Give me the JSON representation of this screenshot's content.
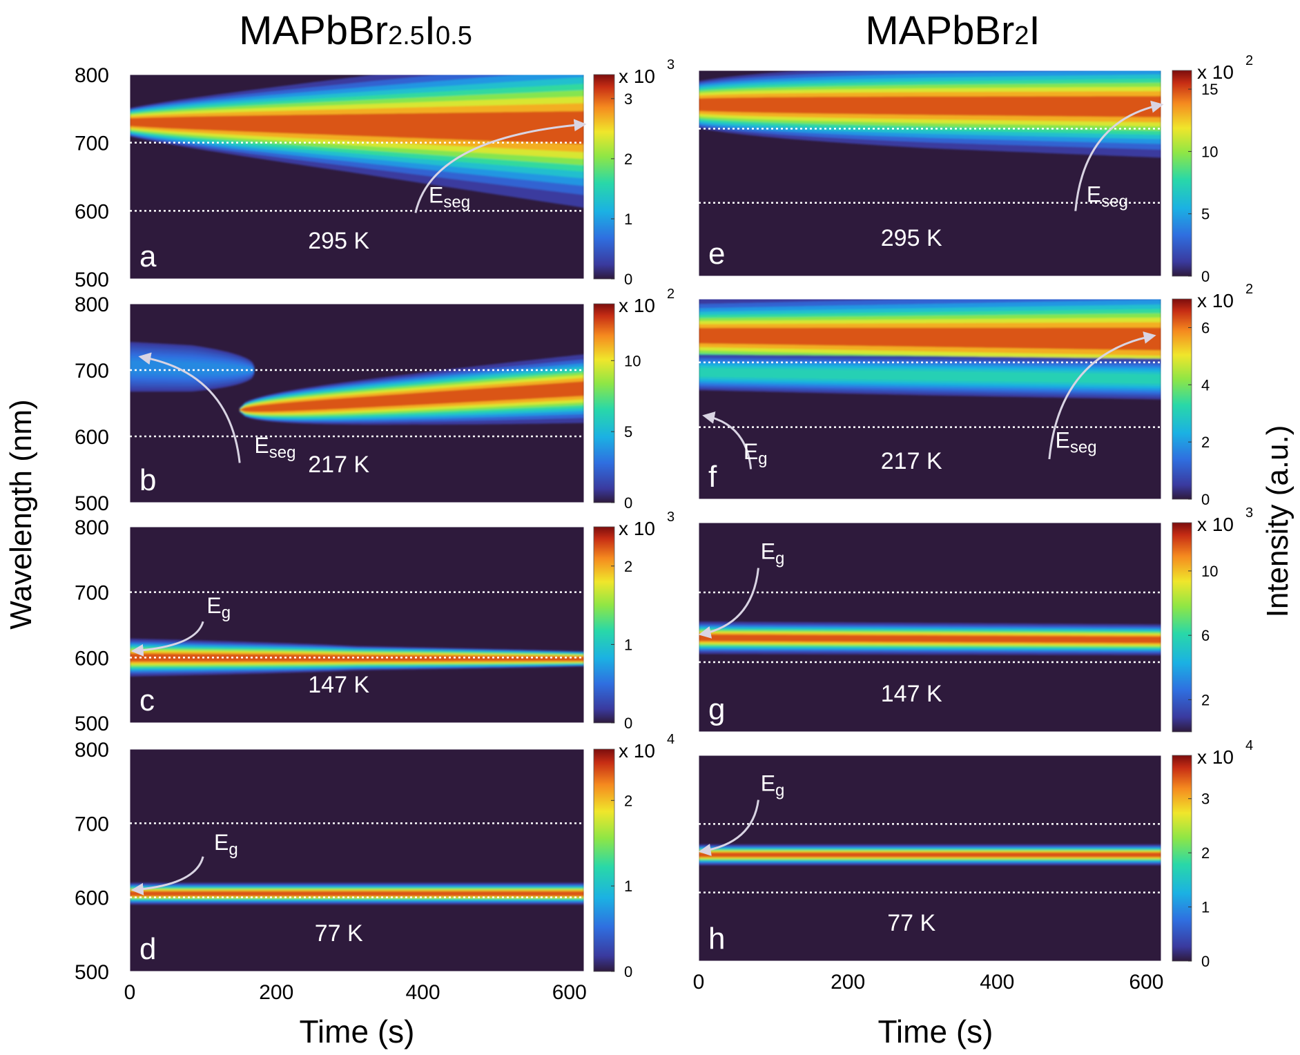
{
  "figure": {
    "left_title": {
      "base": "MAPbBr",
      "sub1": "2.5",
      "mid": "I",
      "sub2": "0.5"
    },
    "right_title": {
      "base": "MAPbBr",
      "sub1": "2",
      "mid": "I"
    },
    "ylabel": "Wavelength (nm)",
    "xlabel_left": "Time (s)",
    "xlabel_right": "Time (s)",
    "colorbar_label": "Intensity (a.u.)"
  },
  "colors": {
    "background": "#2e1a3c",
    "dotted_line": "#ffffff",
    "arrow": "#d9d4e3"
  },
  "chart_data": [
    {
      "type": "heatmap",
      "panel": "a",
      "column": "left",
      "row": 0,
      "temperature": "295 K",
      "xlim": [
        0,
        620
      ],
      "xticks": [
        0,
        200,
        400,
        600
      ],
      "ylim": [
        500,
        800
      ],
      "yticks": [
        500,
        600,
        700,
        800
      ],
      "dotted_lines": [
        700,
        600
      ],
      "colorbar": {
        "scale": "x 10",
        "exponent": "3",
        "ticks": [
          "0",
          "1",
          "2",
          "3"
        ],
        "max": 3.4
      },
      "bands": [
        {
          "t0": 0,
          "t1": 620,
          "c_start": 730,
          "c_end": 722,
          "w_start": 20,
          "w_end": 52,
          "i_start": 0.15,
          "i_mid": 0.55,
          "i_end": 1.0,
          "floor": 0.1,
          "spread": 2.2
        }
      ],
      "annotations": [
        {
          "label": "E",
          "sub": "seg",
          "lx": 390,
          "ly": 597,
          "tx": 620,
          "ty": 727,
          "ox": 408,
          "oy": 612
        }
      ]
    },
    {
      "type": "heatmap",
      "panel": "b",
      "column": "left",
      "row": 1,
      "temperature": "217 K",
      "xlim": [
        0,
        620
      ],
      "xticks": [
        0,
        200,
        400,
        600
      ],
      "ylim": [
        500,
        800
      ],
      "yticks": [
        500,
        600,
        700,
        800
      ],
      "dotted_lines": [
        700,
        600
      ],
      "colorbar": {
        "scale": "x 10",
        "exponent": "2",
        "ticks": [
          "0",
          "5",
          "10"
        ],
        "max": 14
      },
      "bands": [
        {
          "t0": 0,
          "t1": 170,
          "c_start": 705,
          "c_end": 700,
          "w_start": 40,
          "w_end": 40,
          "i_start": 0.22,
          "i_mid": 0.2,
          "i_end": 0.12,
          "floor": 0.12,
          "spread": 1.6
        },
        {
          "t0": 150,
          "t1": 620,
          "c_start": 640,
          "c_end": 672,
          "w_start": 20,
          "w_end": 26,
          "i_start": 0.12,
          "i_mid": 0.5,
          "i_end": 1.0,
          "floor": 0.12,
          "spread": 2.0
        }
      ],
      "annotations": [
        {
          "label": "E",
          "sub": "seg",
          "lx": 150,
          "ly": 560,
          "tx": 15,
          "ty": 720,
          "ox": 170,
          "oy": 575
        }
      ]
    },
    {
      "type": "heatmap",
      "panel": "c",
      "column": "left",
      "row": 2,
      "temperature": "147 K",
      "xlim": [
        0,
        620
      ],
      "xticks": [
        0,
        200,
        400,
        600
      ],
      "ylim": [
        500,
        800
      ],
      "yticks": [
        500,
        600,
        700,
        800
      ],
      "dotted_lines": [
        700,
        600
      ],
      "colorbar": {
        "scale": "x 10",
        "exponent": "3",
        "ticks": [
          "0",
          "1",
          "2"
        ],
        "max": 2.5
      },
      "bands": [
        {
          "t0": 0,
          "t1": 620,
          "c_start": 600,
          "c_end": 598,
          "w_start": 16,
          "w_end": 12,
          "i_start": 1.0,
          "i_mid": 0.35,
          "i_end": 0.2,
          "floor": 0.12,
          "spread": 1.8
        }
      ],
      "annotations": [
        {
          "label": "E",
          "sub": "g",
          "lx": 100,
          "ly": 655,
          "tx": 5,
          "ty": 610,
          "ox": 105,
          "oy": 668
        }
      ]
    },
    {
      "type": "heatmap",
      "panel": "d",
      "column": "left",
      "row": 3,
      "temperature": "77 K",
      "xlim": [
        0,
        620
      ],
      "xticks": [
        0,
        200,
        400,
        600
      ],
      "ylim": [
        500,
        800
      ],
      "yticks": [
        500,
        600,
        700,
        800
      ],
      "dotted_lines": [
        700,
        600
      ],
      "colorbar": {
        "scale": "x 10",
        "exponent": "4",
        "ticks": [
          "0",
          "1",
          "2"
        ],
        "max": 2.6
      },
      "bands": [
        {
          "t0": 0,
          "t1": 620,
          "c_start": 605,
          "c_end": 605,
          "w_start": 9,
          "w_end": 9,
          "i_start": 1.0,
          "i_mid": 1.0,
          "i_end": 1.0,
          "floor": 0.12,
          "spread": 1.6
        }
      ],
      "annotations": [
        {
          "label": "E",
          "sub": "g",
          "lx": 100,
          "ly": 655,
          "tx": 5,
          "ty": 610,
          "ox": 115,
          "oy": 664
        }
      ]
    },
    {
      "type": "heatmap",
      "panel": "e",
      "column": "right",
      "row": 0,
      "temperature": "295 K",
      "xlim": [
        0,
        620
      ],
      "xticks": [
        0,
        200,
        400,
        600
      ],
      "ylim": [
        500,
        800
      ],
      "yticks": [],
      "dotted_lines": [
        715,
        607
      ],
      "colorbar": {
        "scale": "x 10",
        "exponent": "2",
        "ticks": [
          "0",
          "5",
          "10",
          "15"
        ],
        "max": 16.5
      },
      "bands": [
        {
          "t0": 0,
          "t1": 620,
          "c_start": 750,
          "c_end": 747,
          "w_start": 30,
          "w_end": 38,
          "i_start": 0.2,
          "i_mid": 0.7,
          "i_end": 0.95,
          "floor": 0.1,
          "spread": 1.9
        }
      ],
      "annotations": [
        {
          "label": "E",
          "sub": "seg",
          "lx": 505,
          "ly": 595,
          "tx": 620,
          "ty": 750,
          "ox": 520,
          "oy": 608
        }
      ]
    },
    {
      "type": "heatmap",
      "panel": "f",
      "column": "right",
      "row": 1,
      "temperature": "217 K",
      "xlim": [
        0,
        620
      ],
      "xticks": [
        0,
        200,
        400,
        600
      ],
      "ylim": [
        500,
        800
      ],
      "yticks": [],
      "dotted_lines": [
        705,
        608
      ],
      "colorbar": {
        "scale": "x 10",
        "exponent": "2",
        "ticks": [
          "0",
          "2",
          "4",
          "6"
        ],
        "max": 7
      },
      "bands": [
        {
          "t0": 0,
          "t1": 620,
          "c_start": 745,
          "c_end": 740,
          "w_start": 30,
          "w_end": 45,
          "i_start": 1.0,
          "i_mid": 0.82,
          "i_end": 0.72,
          "floor": 0.1,
          "spread": 1.8
        },
        {
          "t0": 0,
          "t1": 620,
          "c_start": 690,
          "c_end": 680,
          "w_start": 22,
          "w_end": 22,
          "i_start": 0.3,
          "i_mid": 0.4,
          "i_end": 0.45,
          "floor": 0.1,
          "spread": 1.6
        }
      ],
      "annotations": [
        {
          "label": "E",
          "sub": "seg",
          "lx": 470,
          "ly": 560,
          "tx": 610,
          "ty": 745,
          "ox": 478,
          "oy": 577
        },
        {
          "label": "E",
          "sub": "g",
          "lx": 70,
          "ly": 545,
          "tx": 8,
          "ty": 625,
          "ox": 60,
          "oy": 560
        }
      ]
    },
    {
      "type": "heatmap",
      "panel": "g",
      "column": "right",
      "row": 2,
      "temperature": "147 K",
      "xlim": [
        0,
        620
      ],
      "xticks": [
        0,
        200,
        400,
        600
      ],
      "ylim": [
        500,
        800
      ],
      "yticks": [],
      "dotted_lines": [
        700,
        600
      ],
      "colorbar": {
        "scale": "x 10",
        "exponent": "3",
        "ticks": [
          "2",
          "6",
          "10"
        ],
        "max": 13
      },
      "bands": [
        {
          "t0": 0,
          "t1": 620,
          "c_start": 635,
          "c_end": 632,
          "w_start": 13,
          "w_end": 13,
          "i_start": 1.0,
          "i_mid": 0.92,
          "i_end": 0.8,
          "floor": 0.1,
          "spread": 1.7
        }
      ],
      "annotations": [
        {
          "label": "E",
          "sub": "g",
          "lx": 80,
          "ly": 735,
          "tx": 3,
          "ty": 640,
          "ox": 83,
          "oy": 748
        }
      ]
    },
    {
      "type": "heatmap",
      "panel": "h",
      "column": "right",
      "row": 3,
      "temperature": "77 K",
      "xlim": [
        0,
        620
      ],
      "xticks": [
        0,
        200,
        400,
        600
      ],
      "ylim": [
        500,
        800
      ],
      "yticks": [],
      "dotted_lines": [
        700,
        600
      ],
      "colorbar": {
        "scale": "x 10",
        "exponent": "4",
        "ticks": [
          "0",
          "1",
          "2",
          "3"
        ],
        "max": 3.8
      },
      "bands": [
        {
          "t0": 0,
          "t1": 620,
          "c_start": 655,
          "c_end": 655,
          "w_start": 9,
          "w_end": 9,
          "i_start": 1.0,
          "i_mid": 1.0,
          "i_end": 1.0,
          "floor": 0.1,
          "spread": 1.6
        }
      ],
      "annotations": [
        {
          "label": "E",
          "sub": "g",
          "lx": 80,
          "ly": 735,
          "tx": 3,
          "ty": 660,
          "ox": 83,
          "oy": 748
        }
      ]
    }
  ]
}
